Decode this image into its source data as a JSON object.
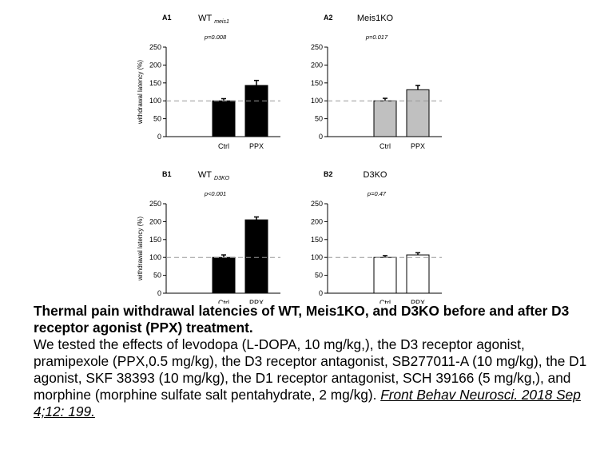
{
  "colors": {
    "axis": "#000000",
    "ref_line": "#999999",
    "bar_black": "#000000",
    "bar_gray": "#c0c0c0",
    "bar_white": "#ffffff"
  },
  "chart_data": [
    {
      "type": "bar",
      "panel_label": "A1",
      "title_main": "WT",
      "title_sub": "meis1",
      "p_value": "p=0.008",
      "ylabel": "withdrawal latency (%)",
      "ylim": [
        0,
        250
      ],
      "yticks": [
        "0",
        "50",
        "100",
        "150",
        "200",
        "250"
      ],
      "categories": [
        "Ctrl",
        "PPX"
      ],
      "values": [
        100,
        143
      ],
      "errors": [
        6,
        14
      ],
      "bar_fill": "#000000",
      "reference_line": 100
    },
    {
      "type": "bar",
      "panel_label": "A2",
      "title_main": "Meis1KO",
      "title_sub": "",
      "p_value": "p=0.017",
      "ylabel": "",
      "ylim": [
        0,
        250
      ],
      "yticks": [
        "0",
        "50",
        "100",
        "150",
        "200",
        "250"
      ],
      "categories": [
        "Ctrl",
        "PPX"
      ],
      "values": [
        100,
        131
      ],
      "errors": [
        7,
        12
      ],
      "bar_fill": "#c0c0c0",
      "reference_line": 100
    },
    {
      "type": "bar",
      "panel_label": "B1",
      "title_main": "WT",
      "title_sub": "D3KO",
      "p_value": "p<0.001",
      "ylabel": "withdrawal latency (%)",
      "ylim": [
        0,
        250
      ],
      "yticks": [
        "0",
        "50",
        "100",
        "150",
        "200",
        "250"
      ],
      "categories": [
        "Ctrl",
        "PPX"
      ],
      "values": [
        100,
        205
      ],
      "errors": [
        7,
        8
      ],
      "bar_fill": "#000000",
      "reference_line": 100
    },
    {
      "type": "bar",
      "panel_label": "B2",
      "title_main": "D3KO",
      "title_sub": "",
      "p_value": "p=0.47",
      "ylabel": "",
      "ylim": [
        0,
        250
      ],
      "yticks": [
        "0",
        "50",
        "100",
        "150",
        "200",
        "250"
      ],
      "categories": [
        "Ctrl",
        "PPX"
      ],
      "values": [
        100,
        107
      ],
      "errors": [
        5,
        6
      ],
      "bar_fill": "#ffffff",
      "reference_line": 100
    }
  ],
  "caption": {
    "title": "Thermal pain withdrawal latencies of WT, Meis1KO, and D3KO before and after D3 receptor agonist (PPX) treatment.",
    "body": "We tested the effects of levodopa (L-DOPA, 10 mg/kg,), the D3 receptor agonist, pramipexole (PPX,0.5 mg/kg), the D3 receptor antagonist, SB277011-A (10 mg/kg), the D1 agonist, SKF 38393 (10 mg/kg), the D1 receptor antagonist, SCH 39166 (5 mg/kg,), and morphine (morphine sulfate salt pentahydrate, 2 mg/kg).",
    "reference": "Front Behav Neurosci. 2018 Sep 4;12: 199."
  }
}
